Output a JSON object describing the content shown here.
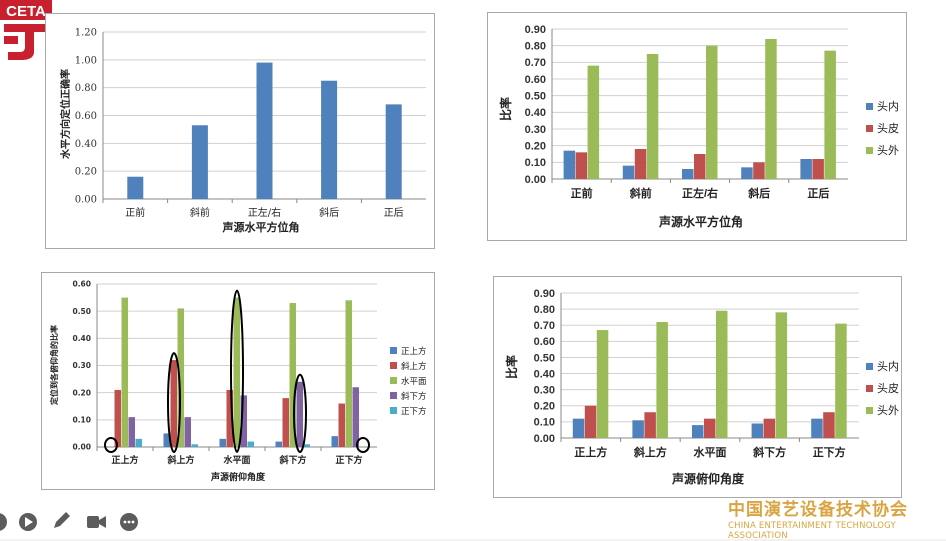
{
  "logo": {
    "text": "CETA"
  },
  "org": {
    "name_cn": "中国演艺设备技术协会",
    "name_en": "CHINA ENTERTAINMENT TECHNOLOGY ASSOCIATION"
  },
  "colors": {
    "blue": "#4f81bd",
    "red": "#c0504d",
    "green": "#9bbb59",
    "purple": "#8064a2",
    "cyan": "#4bacc6",
    "orange": "#d9a441"
  },
  "controls": [
    "play-icon",
    "pen-icon",
    "camera-icon",
    "more-icon"
  ],
  "chart_data": [
    {
      "id": "c1",
      "type": "bar",
      "categories": [
        "正前",
        "斜前",
        "正左/右",
        "斜后",
        "正后"
      ],
      "series": [
        {
          "values": [
            0.16,
            0.53,
            0.98,
            0.85,
            0.68
          ]
        }
      ],
      "xlabel": "声源水平方位角",
      "ylabel": "水平方向定位正确率",
      "ylim": [
        0,
        1.2
      ],
      "yticks": [
        "0.00",
        "0.20",
        "0.40",
        "0.60",
        "0.80",
        "1.00",
        "1.20"
      ],
      "grid": true,
      "legend": "none"
    },
    {
      "id": "c2",
      "type": "bar",
      "categories": [
        "正前",
        "斜前",
        "正左/右",
        "斜后",
        "正后"
      ],
      "series": [
        {
          "name": "头内",
          "values": [
            0.17,
            0.08,
            0.06,
            0.07,
            0.12
          ]
        },
        {
          "name": "头皮",
          "values": [
            0.16,
            0.18,
            0.15,
            0.1,
            0.12
          ]
        },
        {
          "name": "头外",
          "values": [
            0.68,
            0.75,
            0.8,
            0.84,
            0.77
          ]
        }
      ],
      "xlabel": "声源水平方位角",
      "ylabel": "比率",
      "ylim": [
        0,
        0.9
      ],
      "yticks": [
        "0.00",
        "0.10",
        "0.20",
        "0.30",
        "0.40",
        "0.50",
        "0.60",
        "0.70",
        "0.80",
        "0.90"
      ],
      "grid": true,
      "legend": "right"
    },
    {
      "id": "c3",
      "type": "bar",
      "categories": [
        "正上方",
        "斜上方",
        "水平面",
        "斜下方",
        "正下方"
      ],
      "series": [
        {
          "name": "正上方",
          "values": [
            0.0,
            0.05,
            0.03,
            0.02,
            0.04
          ]
        },
        {
          "name": "斜上方",
          "values": [
            0.21,
            0.32,
            0.21,
            0.18,
            0.16
          ]
        },
        {
          "name": "水平面",
          "values": [
            0.55,
            0.51,
            0.55,
            0.53,
            0.54
          ]
        },
        {
          "name": "斜下方",
          "values": [
            0.11,
            0.11,
            0.19,
            0.24,
            0.22
          ]
        },
        {
          "name": "正下方",
          "values": [
            0.03,
            0.01,
            0.02,
            0.01,
            0.0
          ]
        }
      ],
      "xlabel": "声源俯仰角度",
      "ylabel": "定位到各俯仰角的比率",
      "ylim": [
        0,
        0.6
      ],
      "yticks": [
        "0.00",
        "0.10",
        "0.20",
        "0.30",
        "0.40",
        "0.50",
        "0.60"
      ],
      "grid": true,
      "legend": "right",
      "annotations": "black ellipses circling the bars where the perceived elevation matches the source elevation"
    },
    {
      "id": "c4",
      "type": "bar",
      "categories": [
        "正上方",
        "斜上方",
        "水平面",
        "斜下方",
        "正下方"
      ],
      "series": [
        {
          "name": "头内",
          "values": [
            0.12,
            0.11,
            0.08,
            0.09,
            0.12
          ]
        },
        {
          "name": "头皮",
          "values": [
            0.2,
            0.16,
            0.12,
            0.12,
            0.16
          ]
        },
        {
          "name": "头外",
          "values": [
            0.67,
            0.72,
            0.79,
            0.78,
            0.71
          ]
        }
      ],
      "xlabel": "声源俯仰角度",
      "ylabel": "比率",
      "ylim": [
        0,
        0.9
      ],
      "yticks": [
        "0.00",
        "0.10",
        "0.20",
        "0.30",
        "0.40",
        "0.50",
        "0.60",
        "0.70",
        "0.80",
        "0.90"
      ],
      "grid": true,
      "legend": "right"
    }
  ]
}
